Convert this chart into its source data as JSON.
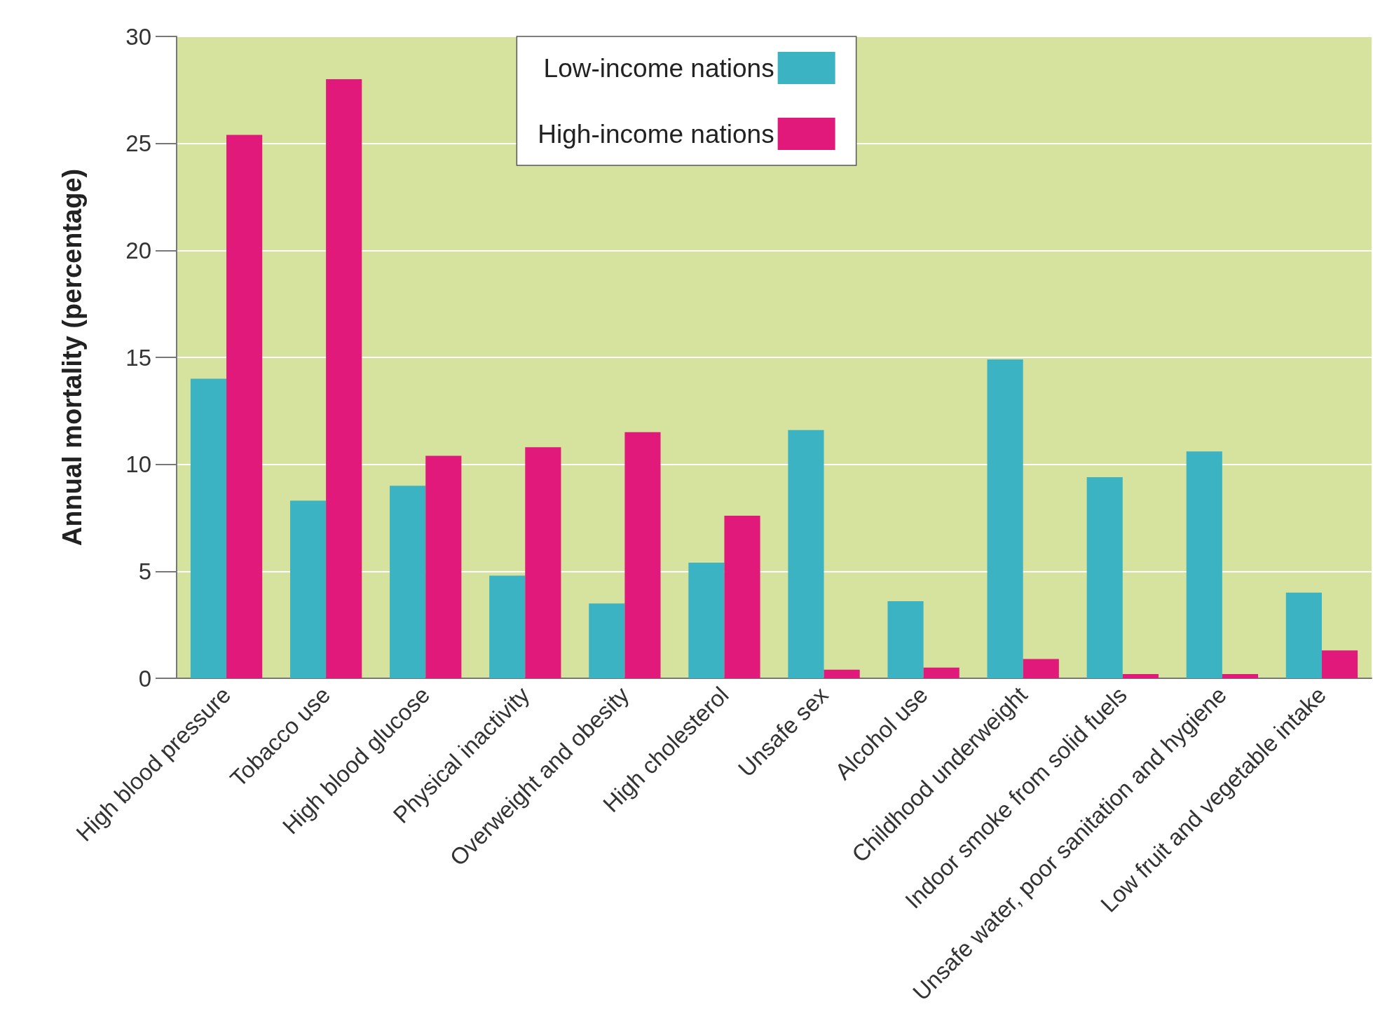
{
  "chart_data": {
    "type": "bar",
    "ylabel": "Annual mortality (percentage)",
    "categories": [
      "High blood pressure",
      "Tobacco use",
      "High blood glucose",
      "Physical inactivity",
      "Overweight and obesity",
      "High cholesterol",
      "Unsafe sex",
      "Alcohol use",
      "Childhood underweight",
      "Indoor smoke from solid fuels",
      "Unsafe water, poor sanitation and hygiene",
      "Low fruit and vegetable intake"
    ],
    "series": [
      {
        "name": "Low-income nations",
        "color": "#3bb3c3",
        "values": [
          14.0,
          8.3,
          9.0,
          4.8,
          3.5,
          5.4,
          11.6,
          3.6,
          14.9,
          9.4,
          10.6,
          4.0
        ]
      },
      {
        "name": "High-income nations",
        "color": "#e0197a",
        "values": [
          25.4,
          28.0,
          10.4,
          10.8,
          11.5,
          7.6,
          0.4,
          0.5,
          0.9,
          0.2,
          0.2,
          1.3
        ]
      }
    ],
    "ylim": [
      0,
      30
    ],
    "yticks": [
      0,
      5,
      10,
      15,
      20,
      25,
      30
    ],
    "grid": "y",
    "legend": "top"
  }
}
